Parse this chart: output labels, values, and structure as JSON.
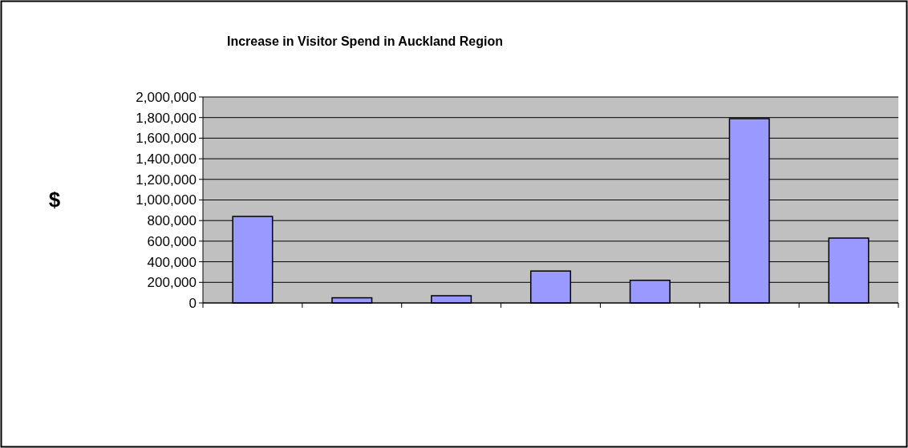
{
  "chart_data": {
    "type": "bar",
    "title": "Increase in Visitor Spend in Auckland Region",
    "ylabel": "$",
    "categories": [
      null,
      null,
      null,
      null,
      null,
      null,
      null
    ],
    "values": [
      840000,
      50000,
      70000,
      310000,
      220000,
      1790000,
      630000
    ],
    "color": "#9999ff",
    "ylim": [
      0,
      2000000
    ],
    "yticks": [
      {
        "value": 0,
        "label": "0"
      },
      {
        "value": 200000,
        "label": "200,000"
      },
      {
        "value": 400000,
        "label": "400,000"
      },
      {
        "value": 600000,
        "label": "600,000"
      },
      {
        "value": 800000,
        "label": "800,000"
      },
      {
        "value": 1000000,
        "label": "1,000,000"
      },
      {
        "value": 1200000,
        "label": "1,200,000"
      },
      {
        "value": 1400000,
        "label": "1,400,000"
      },
      {
        "value": 1600000,
        "label": "1,600,000"
      },
      {
        "value": 1800000,
        "label": "1,800,000"
      },
      {
        "value": 2000000,
        "label": "2,000,000"
      }
    ],
    "grid": "y"
  }
}
